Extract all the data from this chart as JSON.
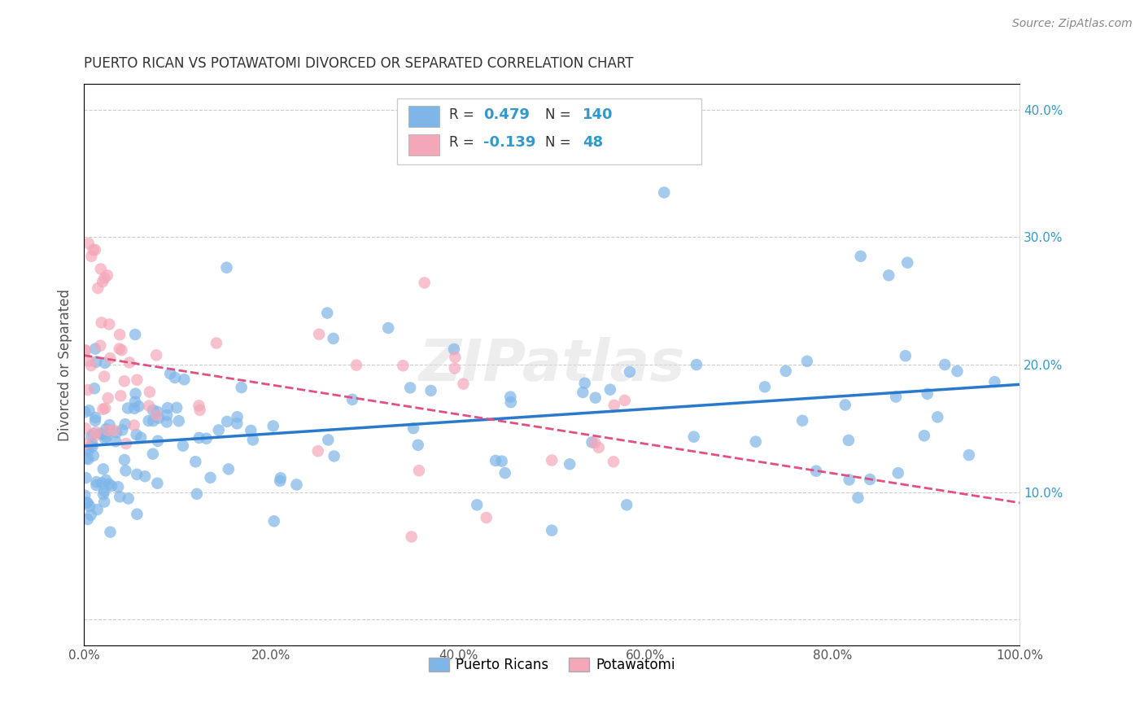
{
  "title": "PUERTO RICAN VS POTAWATOMI DIVORCED OR SEPARATED CORRELATION CHART",
  "source": "Source: ZipAtlas.com",
  "ylabel": "Divorced or Separated",
  "legend_label1": "Puerto Ricans",
  "legend_label2": "Potawatomi",
  "r1": 0.479,
  "n1": 140,
  "r2": -0.139,
  "n2": 48,
  "color_blue": "#7EB6E8",
  "color_pink": "#F4A7B9",
  "color_blue_line": "#2979CC",
  "color_pink_line": "#E05080",
  "watermark": "ZIPatlas",
  "xlim": [
    0.0,
    1.0
  ],
  "ylim": [
    -0.02,
    0.42
  ],
  "yticks": [
    0.0,
    0.1,
    0.2,
    0.3,
    0.4
  ],
  "ytick_labels": [
    "",
    "10.0%",
    "20.0%",
    "30.0%",
    "40.0%"
  ],
  "background_color": "#FFFFFF",
  "grid_color": "#CCCCCC"
}
